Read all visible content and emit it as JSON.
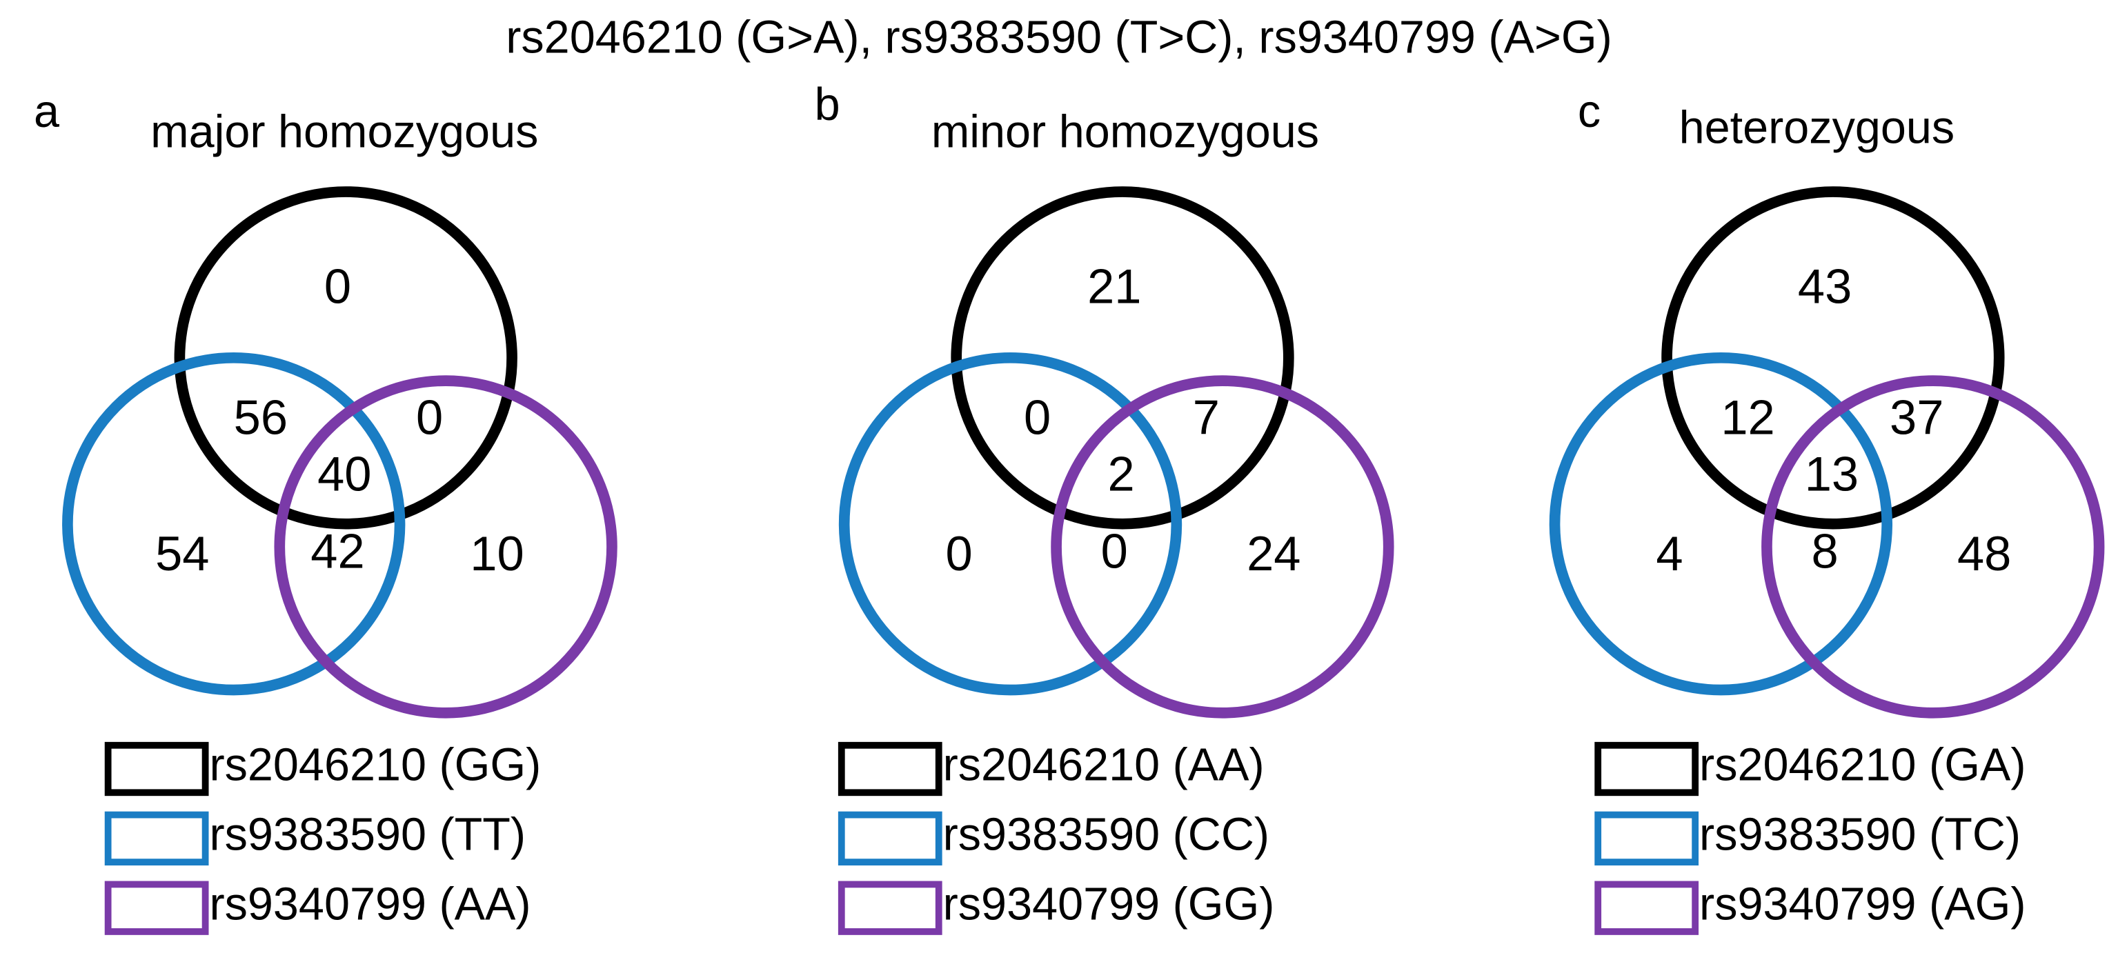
{
  "title": "rs2046210 (G>A), rs9383590 (T>C), rs9340799 (A>G)",
  "panels": [
    {
      "letter": "a",
      "title": "major homozygous",
      "counts": [
        0,
        56,
        0,
        40,
        54,
        42,
        10
      ],
      "legend": [
        {
          "label": "rs2046210 (GG)",
          "color": "#000000"
        },
        {
          "label": "rs9383590 (TT)",
          "color": "#1a7dc4"
        },
        {
          "label": "rs9340799 (AA)",
          "color": "#7a3aa8"
        }
      ]
    },
    {
      "letter": "b",
      "title": "minor homozygous",
      "counts": [
        21,
        0,
        7,
        2,
        0,
        0,
        24
      ],
      "legend": [
        {
          "label": "rs2046210 (AA)",
          "color": "#000000"
        },
        {
          "label": "rs9383590 (CC)",
          "color": "#1a7dc4"
        },
        {
          "label": "rs9340799 (GG)",
          "color": "#7a3aa8"
        }
      ]
    },
    {
      "letter": "c",
      "title": "heterozygous",
      "counts": [
        43,
        12,
        37,
        13,
        4,
        8,
        48
      ],
      "legend": [
        {
          "label": "rs2046210 (GA)",
          "color": "#000000"
        },
        {
          "label": "rs9383590 (TC)",
          "color": "#1a7dc4"
        },
        {
          "label": "rs9340799 (AG)",
          "color": "#7a3aa8"
        }
      ]
    }
  ]
}
